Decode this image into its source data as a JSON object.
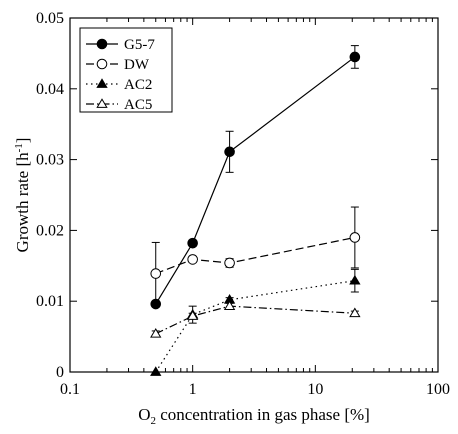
{
  "chart_data": {
    "type": "line",
    "xlabel_main": "O",
    "xlabel_sub": "2",
    "xlabel_rest": " concentration in gas phase [%]",
    "ylabel_main": "Growth rate [h",
    "ylabel_sup": "-1",
    "ylabel_end": "]",
    "xscale": "log",
    "xlim": [
      0.1,
      100
    ],
    "ylim": [
      0,
      0.05
    ],
    "xticks": [
      {
        "value": 0.1,
        "label": "0.1"
      },
      {
        "value": 1,
        "label": "1"
      },
      {
        "value": 10,
        "label": "10"
      },
      {
        "value": 100,
        "label": "100"
      }
    ],
    "yticks": [
      {
        "value": 0,
        "label": "0"
      },
      {
        "value": 0.01,
        "label": "0.01"
      },
      {
        "value": 0.02,
        "label": "0.02"
      },
      {
        "value": 0.03,
        "label": "0.03"
      },
      {
        "value": 0.04,
        "label": "0.04"
      },
      {
        "value": 0.05,
        "label": "0.05"
      }
    ],
    "grid": false,
    "legend_position": "top-left",
    "series": [
      {
        "name": "G5-7",
        "marker": "circle-filled",
        "line": "solid",
        "points": [
          {
            "x": 0.5,
            "y": 0.0096,
            "err": 0
          },
          {
            "x": 1,
            "y": 0.0182,
            "err": 0.0004
          },
          {
            "x": 2,
            "y": 0.0311,
            "err": 0.0029
          },
          {
            "x": 21,
            "y": 0.0445,
            "err": 0.0016
          }
        ]
      },
      {
        "name": "DW",
        "marker": "circle-open",
        "line": "dashed",
        "points": [
          {
            "x": 0.5,
            "y": 0.0139,
            "err": 0.0044
          },
          {
            "x": 1,
            "y": 0.0159,
            "err": 0.0004
          },
          {
            "x": 2,
            "y": 0.0154,
            "err": 0.0006
          },
          {
            "x": 21,
            "y": 0.019,
            "err": 0.0043
          }
        ]
      },
      {
        "name": "AC2",
        "marker": "triangle-filled",
        "line": "dotted",
        "points": [
          {
            "x": 0.5,
            "y": 0.0,
            "err": 0
          },
          {
            "x": 1,
            "y": 0.0081,
            "err": 0.0012
          },
          {
            "x": 2,
            "y": 0.0102,
            "err": 0.0003
          },
          {
            "x": 21,
            "y": 0.0129,
            "err": 0.0016
          }
        ]
      },
      {
        "name": "AC5",
        "marker": "triangle-open",
        "line": "dashdot",
        "points": [
          {
            "x": 0.5,
            "y": 0.0054,
            "err": 0.0004
          },
          {
            "x": 1,
            "y": 0.0079,
            "err": 0.0004
          },
          {
            "x": 2,
            "y": 0.0093,
            "err": 0.0004
          },
          {
            "x": 21,
            "y": 0.0083,
            "err": 0.0003
          }
        ]
      }
    ]
  }
}
